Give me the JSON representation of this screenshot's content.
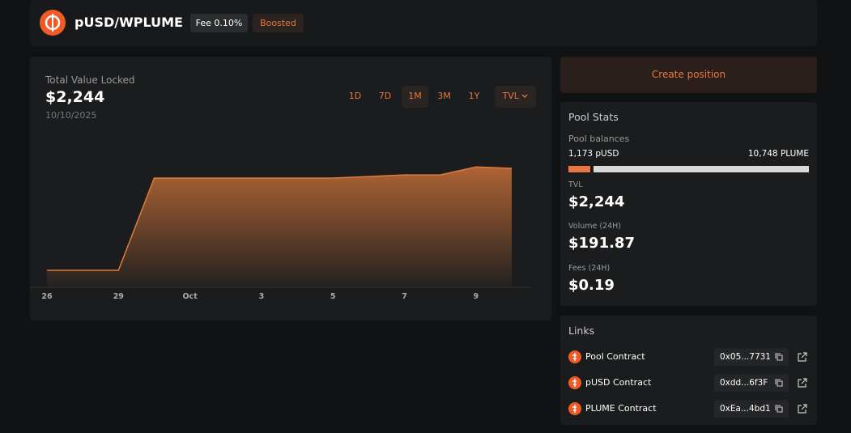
{
  "header": {
    "title": "pUSD/WPLUME",
    "fee": "Fee 0.10%",
    "badge": "Boosted"
  },
  "timeframes": [
    "1D",
    "7D",
    "1M",
    "3M",
    "1Y"
  ],
  "selected_timeframe": "1M",
  "metric": "TVL",
  "chart_data": {
    "type": "area",
    "title": "Total Value Locked",
    "current_value": "$2,244",
    "date": "10/10/2025",
    "categories": [
      "26",
      null,
      "29",
      null,
      "Oct",
      null,
      "3",
      null,
      "5",
      null,
      "7",
      null,
      "9",
      null
    ],
    "values": [
      320,
      320,
      320,
      2060,
      2060,
      2060,
      2060,
      2060,
      2060,
      2090,
      2120,
      2120,
      2270,
      2244
    ],
    "color": "#e07b3c",
    "ylim": [
      0,
      2900
    ]
  },
  "create_button": "Create position",
  "stats": {
    "title": "Pool Stats",
    "balances_label": "Pool balances",
    "balance_a": "1,173 pUSD",
    "balance_b": "10,748 PLUME",
    "tvl_label": "TVL",
    "tvl": "$2,244",
    "volume_label": "Volume (24H)",
    "volume": "$191.87",
    "fees_label": "Fees (24H)",
    "fees": "$0.19"
  },
  "links": {
    "title": "Links",
    "rows": [
      {
        "name": "Pool Contract",
        "address": "0x05...7731"
      },
      {
        "name": "pUSD Contract",
        "address": "0xdd...6f3F"
      },
      {
        "name": "PLUME Contract",
        "address": "0xEa...4bd1"
      }
    ]
  }
}
